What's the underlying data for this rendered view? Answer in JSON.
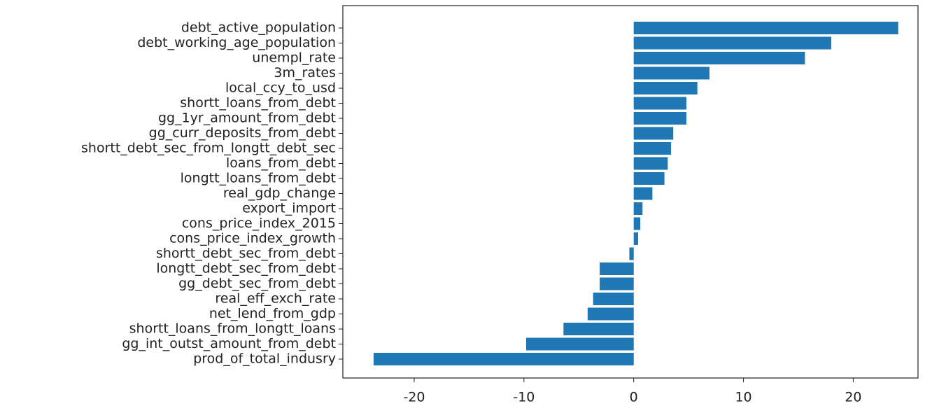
{
  "chart_data": {
    "type": "barh",
    "categories": [
      "debt_active_population",
      "debt_working_age_population",
      "unempl_rate",
      "3m_rates",
      "local_ccy_to_usd",
      "shortt_loans_from_debt",
      "gg_1yr_amount_from_debt",
      "gg_curr_deposits_from_debt",
      "shortt_debt_sec_from_longtt_debt_sec",
      "loans_from_debt",
      "longtt_loans_from_debt",
      "real_gdp_change",
      "export_import",
      "cons_price_index_2015",
      "cons_price_index_growth",
      "shortt_debt_sec_from_debt",
      "longtt_debt_sec_from_debt",
      "gg_debt_sec_from_debt",
      "real_eff_exch_rate",
      "net_lend_from_gdp",
      "shortt_loans_from_longtt_loans",
      "gg_int_outst_amount_from_debt",
      "prod_of_total_indusry"
    ],
    "values": [
      24.1,
      18.0,
      15.6,
      6.9,
      5.8,
      4.8,
      4.8,
      3.6,
      3.4,
      3.1,
      2.8,
      1.7,
      0.8,
      0.6,
      0.4,
      -0.4,
      -3.1,
      -3.1,
      -3.7,
      -4.2,
      -6.4,
      -9.8,
      -23.7
    ],
    "color": "#1f77b4",
    "xlim": [
      -26.5,
      25.9
    ],
    "xticks": [
      -20,
      -10,
      0,
      10,
      20
    ]
  }
}
